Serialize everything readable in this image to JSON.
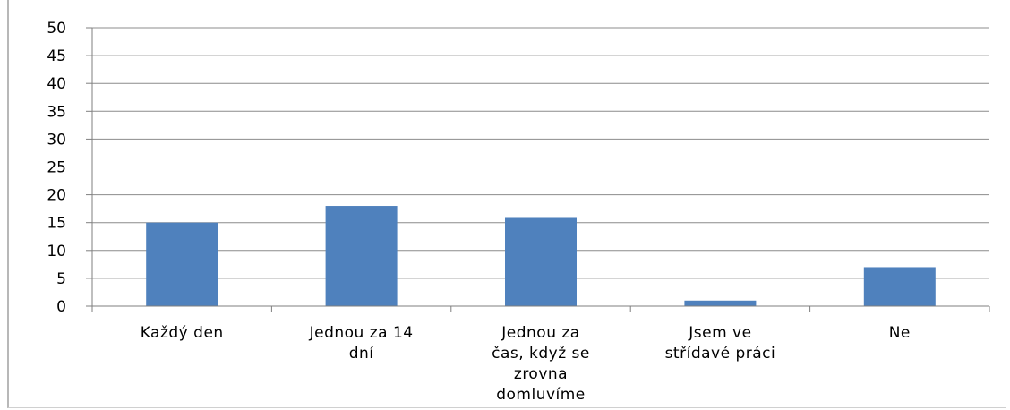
{
  "chart_data": {
    "type": "bar",
    "categories": [
      [
        "Každý den"
      ],
      [
        "Jednou za 14",
        "dní"
      ],
      [
        "Jednou za",
        "čas, když se",
        "zrovna",
        "domluvíme"
      ],
      [
        "Jsem ve",
        "střídavé práci"
      ],
      [
        "Ne"
      ]
    ],
    "values": [
      15,
      18,
      16,
      1,
      7
    ],
    "yticks": [
      "0",
      "5",
      "10",
      "15",
      "20",
      "25",
      "30",
      "35",
      "40",
      "45",
      "50"
    ],
    "ylim": [
      0,
      50
    ],
    "grid": true,
    "bar_color": "#4f81bd",
    "grid_color": "#8c8c8c",
    "axis_color": "#7f7f7f"
  }
}
